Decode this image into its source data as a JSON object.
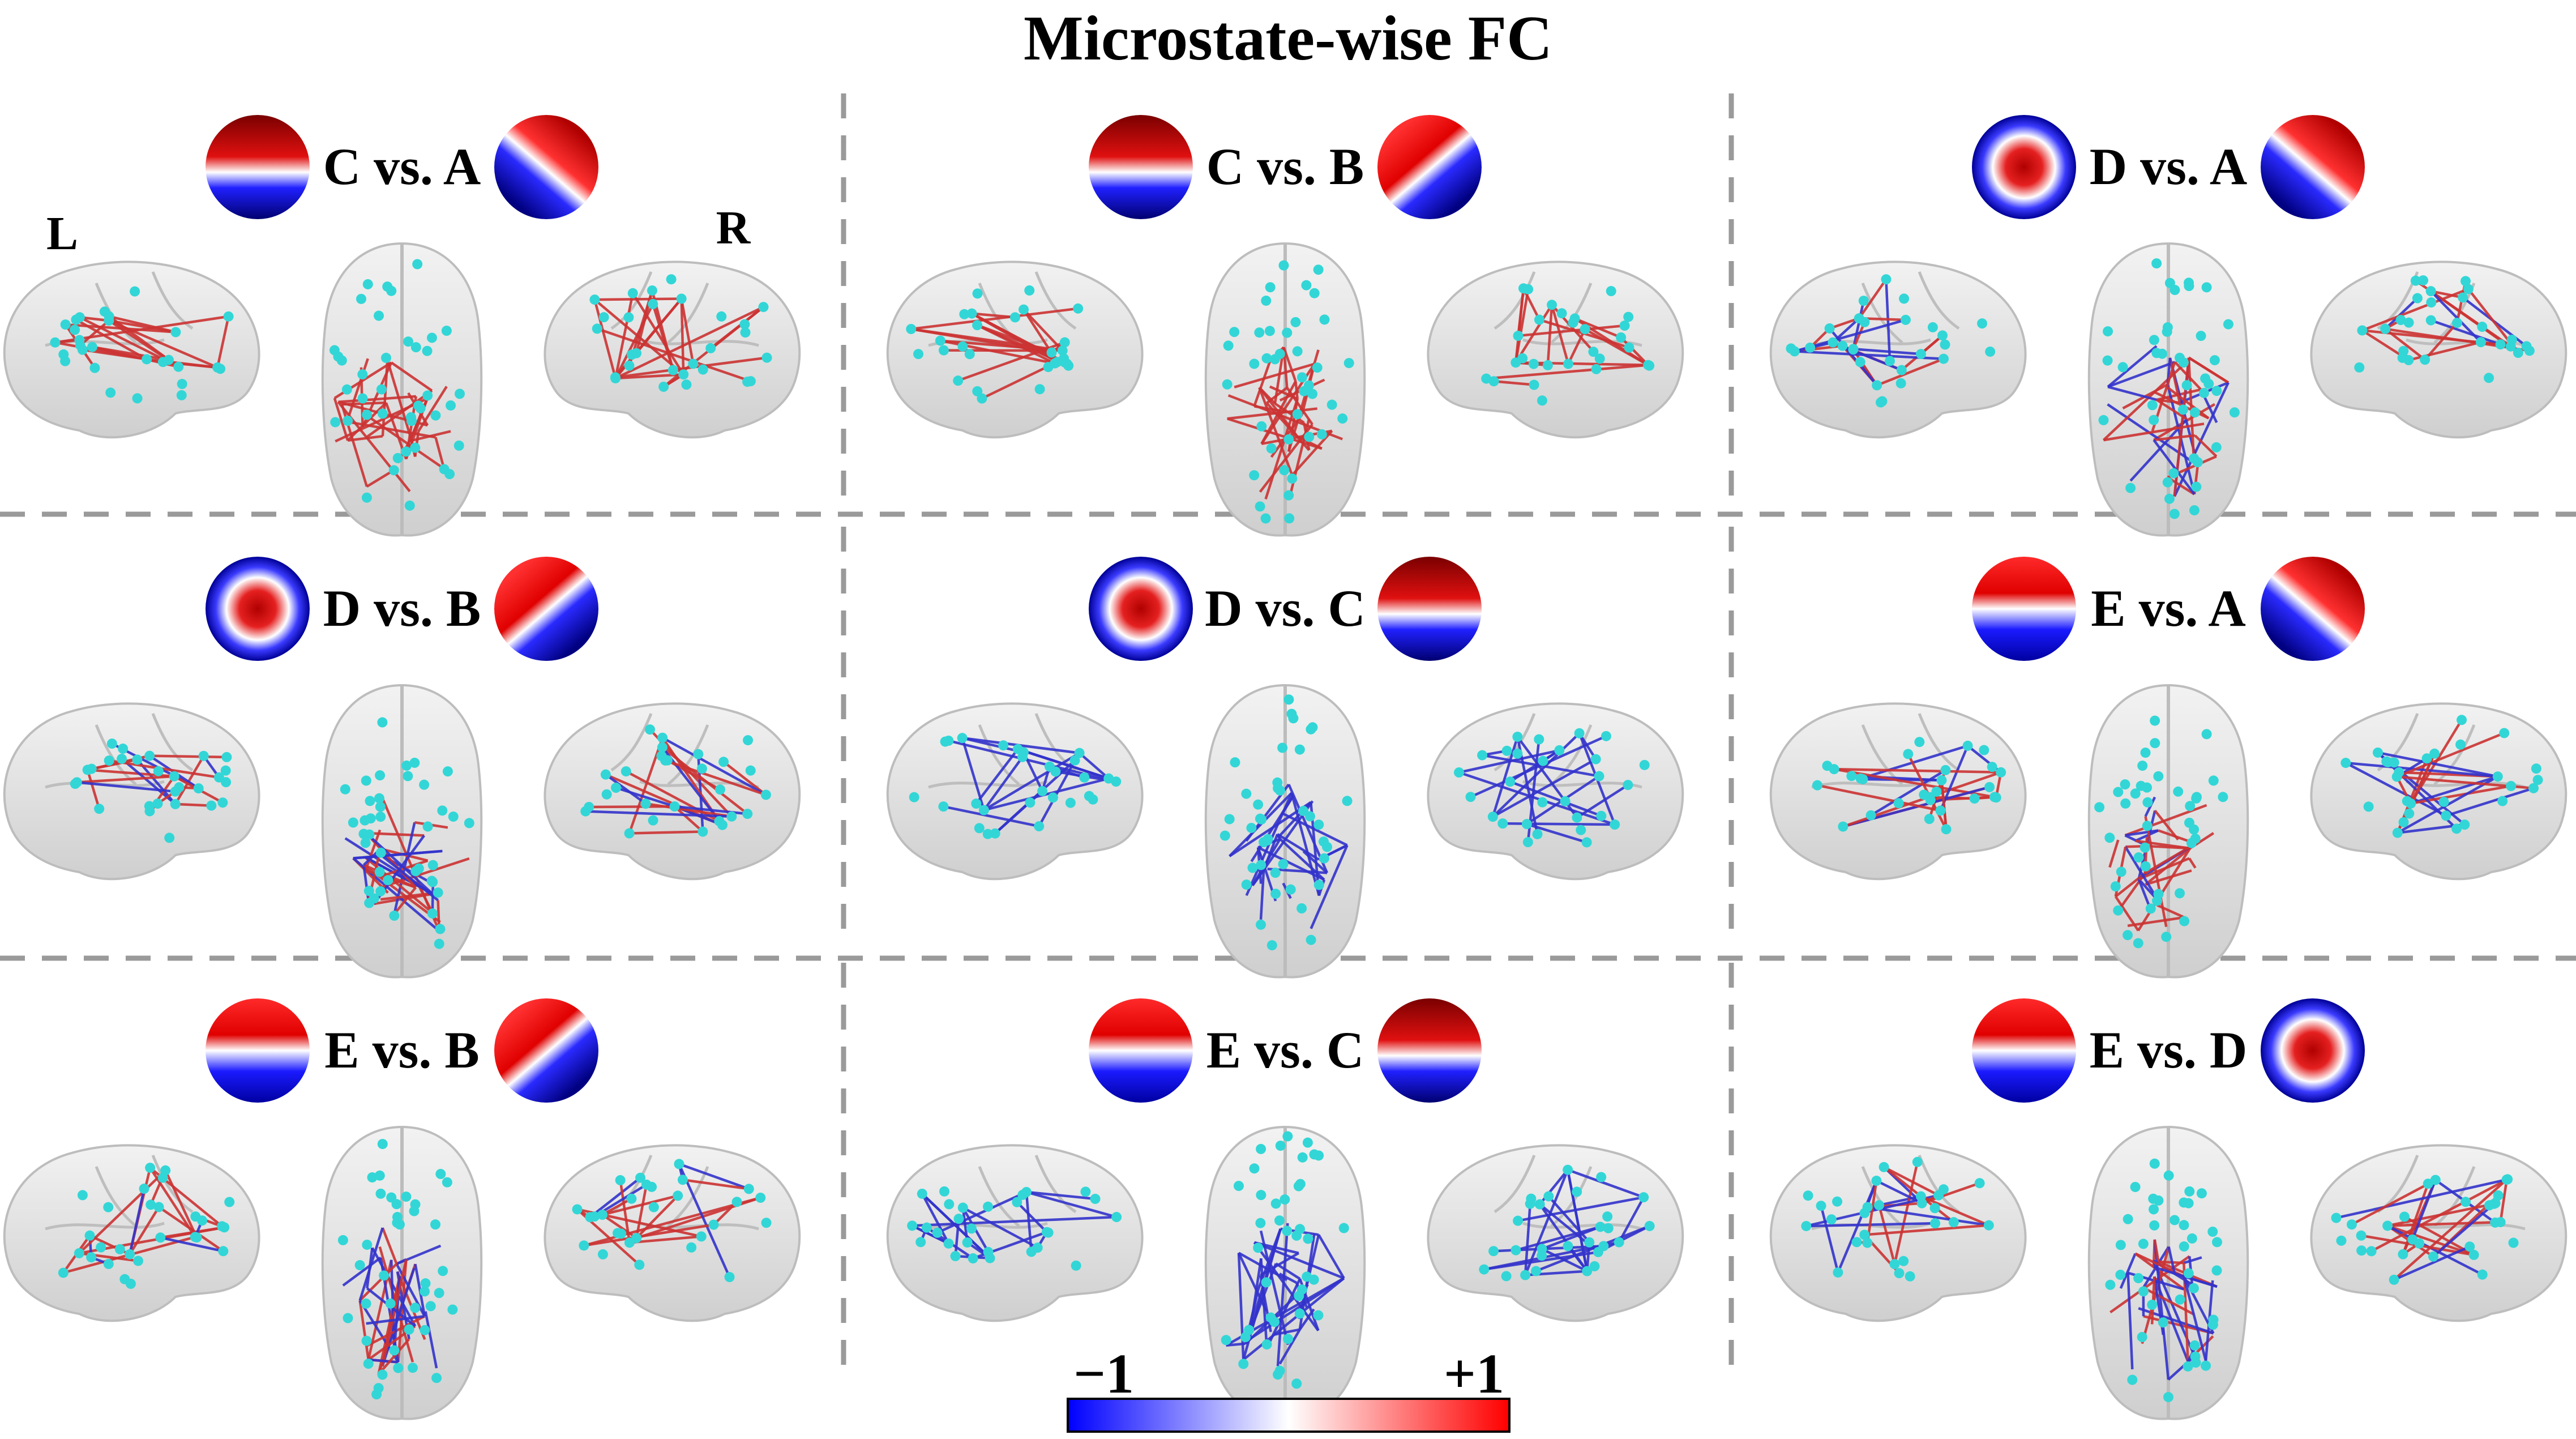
{
  "title": "Microstate-wise FC",
  "hemisphere_labels": {
    "left": "L",
    "right": "R"
  },
  "colorbar": {
    "min_label": "−1",
    "max_label": "+1",
    "colors": [
      "#0000ff",
      "#ffffff",
      "#ff0000"
    ]
  },
  "colors": {
    "positive_edge": "#cc3333",
    "negative_edge": "#3333cc",
    "node": "#33d6d6",
    "divider": "#9a9a9a"
  },
  "panels": [
    {
      "label": "C  vs. A",
      "left_map": "C",
      "right_map": "A",
      "edge_sign": "positive"
    },
    {
      "label": "C  vs. B",
      "left_map": "C",
      "right_map": "B",
      "edge_sign": "positive"
    },
    {
      "label": "D  vs. A",
      "left_map": "D",
      "right_map": "A",
      "edge_sign": "mixed"
    },
    {
      "label": "D  vs. B",
      "left_map": "D",
      "right_map": "B",
      "edge_sign": "mixed"
    },
    {
      "label": "D  vs. C",
      "left_map": "D",
      "right_map": "C",
      "edge_sign": "negative"
    },
    {
      "label": "E  vs. A",
      "left_map": "E",
      "right_map": "A",
      "edge_sign": "mixed"
    },
    {
      "label": "E  vs. B",
      "left_map": "E",
      "right_map": "B",
      "edge_sign": "mixed"
    },
    {
      "label": "E  vs. C",
      "left_map": "E",
      "right_map": "C",
      "edge_sign": "negative"
    },
    {
      "label": "E  vs. D",
      "left_map": "E",
      "right_map": "D",
      "edge_sign": "mixed"
    }
  ]
}
